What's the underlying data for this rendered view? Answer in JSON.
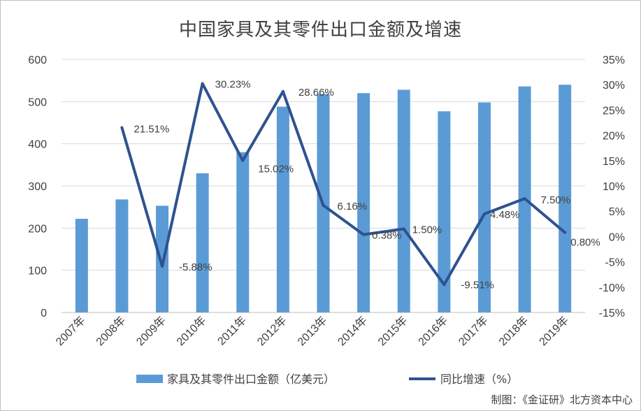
{
  "chart_data": {
    "type": "bar",
    "title": "中国家具及其零件出口金额及增速",
    "categories": [
      "2007年",
      "2008年",
      "2009年",
      "2010年",
      "2011年",
      "2012年",
      "2013年",
      "2014年",
      "2015年",
      "2016年",
      "2017年",
      "2018年",
      "2019年"
    ],
    "series": [
      {
        "name": "家具及其零件出口金额（亿美元）",
        "type": "bar",
        "axis": "left",
        "color": "#5b9bd5",
        "values": [
          222,
          268,
          253,
          330,
          380,
          488,
          518,
          520,
          528,
          477,
          498,
          536,
          540
        ]
      },
      {
        "name": "同比增速（%）",
        "type": "line",
        "axis": "right",
        "color": "#2f528f",
        "values": [
          null,
          21.51,
          -5.88,
          30.23,
          15.02,
          28.66,
          6.16,
          0.38,
          1.5,
          -9.51,
          4.48,
          7.5,
          0.8
        ],
        "labels": [
          "",
          "21.51%",
          "-5.88%",
          "30.23%",
          "15.02%",
          "28.66%",
          "6.16%",
          "0.38%",
          "1.50%",
          "-9.51%",
          "4.48%",
          "7.50%",
          "0.80%"
        ]
      }
    ],
    "y_left": {
      "min": 0,
      "max": 600,
      "ticks": [
        "0",
        "100",
        "200",
        "300",
        "400",
        "500",
        "600"
      ]
    },
    "y_right": {
      "min": -15,
      "max": 35,
      "ticks": [
        "-15%",
        "-10%",
        "-5%",
        "0%",
        "5%",
        "10%",
        "15%",
        "20%",
        "25%",
        "30%",
        "35%"
      ]
    },
    "grid": true,
    "legend_position": "bottom"
  },
  "source_note": "制图：《金证研》北方资本中心"
}
